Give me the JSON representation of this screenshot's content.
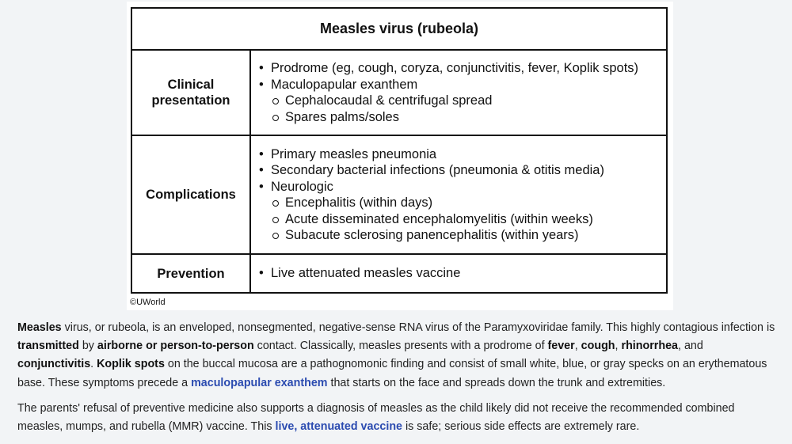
{
  "table": {
    "title": "Measles virus (rubeola)",
    "rows": [
      {
        "label": "Clinical presentation",
        "items": [
          {
            "text": "Prodrome (eg, cough, coryza, conjunctivitis, fever, Koplik spots)",
            "sub": []
          },
          {
            "text": "Maculopapular exanthem",
            "sub": [
              "Cephalocaudal & centrifugal spread",
              "Spares palms/soles"
            ]
          }
        ]
      },
      {
        "label": "Complications",
        "items": [
          {
            "text": "Primary measles pneumonia",
            "sub": []
          },
          {
            "text": "Secondary bacterial infections (pneumonia & otitis media)",
            "sub": []
          },
          {
            "text": "Neurologic",
            "sub": [
              "Encephalitis (within days)",
              "Acute disseminated encephalomyelitis (within weeks)",
              "Subacute sclerosing panencephalitis (within years)"
            ]
          }
        ]
      },
      {
        "label": "Prevention",
        "items": [
          {
            "text": "Live attenuated measles vaccine",
            "sub": []
          }
        ]
      }
    ],
    "copyright": "©UWorld"
  },
  "explanation": {
    "p1": {
      "measles": "Measles",
      "t1": " virus, or rubeola, is an enveloped, nonsegmented, negative-sense RNA virus of the Paramyxoviridae family.  This highly contagious infection is ",
      "transmitted": "transmitted",
      "t2": " by ",
      "airborne": "airborne or person-to-person",
      "t3": " contact.  Classically, measles presents with a prodrome of ",
      "fever": "fever",
      "t4": ", ",
      "cough": "cough",
      "t5": ", ",
      "rhinorrhea": "rhinorrhea",
      "t6": ", and ",
      "conjunctivitis": "conjunctivitis",
      "t7": ".  ",
      "koplik": "Koplik spots",
      "t8": " on the buccal mucosa are a pathognomonic finding and consist of small white, blue, or gray specks on an erythematous base.  These symptoms precede a ",
      "exanthem_link": "maculopapular exanthem",
      "t9": " that starts on the face and spreads down the trunk and extremities."
    },
    "p2": {
      "t1": "The parents' refusal of preventive medicine also supports a diagnosis of measles as the child likely did not receive the recommended combined measles, mumps, and rubella (MMR) vaccine.  This ",
      "vaccine_link": "live, attenuated vaccine",
      "t2": " is safe; serious side effects are extremely rare."
    }
  }
}
